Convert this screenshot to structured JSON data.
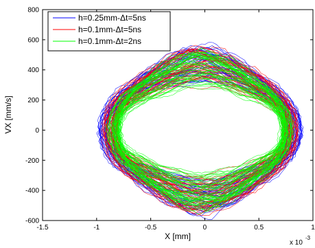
{
  "chart_data": {
    "type": "line",
    "xlabel": "X [mm]",
    "ylabel": "VX [mm/s]",
    "x_exponent_label": "x 10",
    "x_exponent_power": "-3",
    "xlim": [
      -1.5,
      1.0
    ],
    "ylim": [
      -600,
      800
    ],
    "xticks": [
      "-1.5",
      "-1",
      "-0.5",
      "0",
      "0.5",
      "1"
    ],
    "xtick_values": [
      -1.5,
      -1.0,
      -0.5,
      0,
      0.5,
      1.0
    ],
    "yticks": [
      "-600",
      "-400",
      "-200",
      "0",
      "200",
      "400",
      "600",
      "800"
    ],
    "ytick_values": [
      -600,
      -400,
      -200,
      0,
      200,
      400,
      600,
      800
    ],
    "grid": false,
    "legend_position": "top-left",
    "series": [
      {
        "name": "h=0.25mm-Δt=5ns",
        "color": "#0000ff",
        "outer": {
          "x_amp": 0.94,
          "y_amp": 560,
          "x_shift": -0.04
        },
        "inner": {
          "x_amp": 0.78,
          "y_amp": 300,
          "x_shift": -0.05
        }
      },
      {
        "name": "h=0.1mm-Δt=5ns",
        "color": "#ff0000",
        "outer": {
          "x_amp": 0.9,
          "y_amp": 545,
          "x_shift": -0.04
        },
        "inner": {
          "x_amp": 0.76,
          "y_amp": 290,
          "x_shift": -0.05
        }
      },
      {
        "name": "h=0.1mm-Δt=2ns",
        "color": "#00ff00",
        "outer": {
          "x_amp": 0.86,
          "y_amp": 520,
          "x_shift": -0.04
        },
        "inner": {
          "x_amp": 0.74,
          "y_amp": 285,
          "x_shift": -0.05
        }
      }
    ]
  }
}
